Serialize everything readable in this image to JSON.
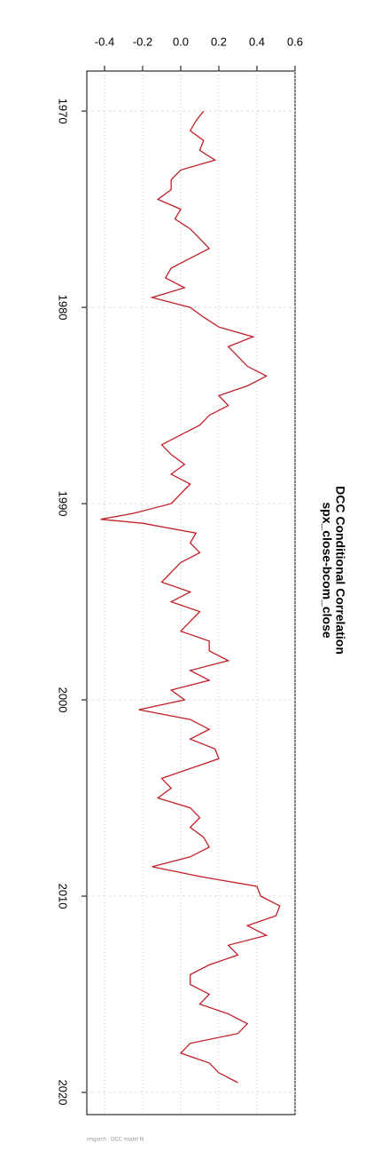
{
  "chart_data": {
    "type": "line",
    "title": "DCC Conditional Correlation",
    "subtitle": "spx_close-bcom_close",
    "caption": "rmgarch : DCC model fit",
    "x": [
      1970,
      1970.5,
      1971,
      1971.5,
      1972,
      1972.5,
      1973,
      1973.5,
      1974,
      1974.5,
      1975,
      1975.5,
      1976,
      1976.5,
      1977,
      1977.5,
      1978,
      1978.5,
      1979,
      1979.5,
      1980,
      1980.5,
      1981,
      1981.5,
      1982,
      1982.5,
      1983,
      1983.5,
      1984,
      1984.5,
      1985,
      1985.5,
      1986,
      1986.5,
      1987,
      1987.5,
      1988,
      1988.5,
      1989,
      1989.5,
      1990,
      1990.5,
      1990.8,
      1991,
      1991.5,
      1992,
      1992.5,
      1993,
      1993.5,
      1994,
      1994.5,
      1995,
      1995.5,
      1996,
      1996.5,
      1997,
      1997.5,
      1998,
      1998.5,
      1999,
      1999.5,
      2000,
      2000.5,
      2001,
      2001.5,
      2002,
      2002.5,
      2003,
      2003.5,
      2004,
      2004.5,
      2005,
      2005.5,
      2006,
      2006.5,
      2007,
      2007.5,
      2008,
      2008.5,
      2009,
      2009.5,
      2010,
      2010.5,
      2011,
      2011.5,
      2012,
      2012.5,
      2013,
      2013.5,
      2014,
      2014.5,
      2015,
      2015.5,
      2016,
      2016.5,
      2017,
      2017.5,
      2018,
      2018.5,
      2019,
      2019.5
    ],
    "series": [
      {
        "name": "spx_close-bcom_close",
        "color": "#c0202a",
        "values": [
          0.12,
          0.08,
          0.05,
          0.12,
          0.1,
          0.18,
          0.0,
          -0.05,
          -0.05,
          -0.12,
          0.0,
          -0.03,
          0.05,
          0.1,
          0.15,
          0.05,
          -0.05,
          -0.08,
          0.02,
          -0.15,
          0.05,
          0.12,
          0.2,
          0.38,
          0.25,
          0.3,
          0.35,
          0.45,
          0.35,
          0.2,
          0.25,
          0.15,
          0.1,
          0.0,
          -0.1,
          -0.05,
          0.02,
          -0.05,
          0.05,
          0.0,
          -0.05,
          -0.25,
          -0.42,
          -0.2,
          0.08,
          0.05,
          0.1,
          0.0,
          -0.05,
          -0.1,
          0.05,
          -0.05,
          0.1,
          0.05,
          0.0,
          0.15,
          0.15,
          0.25,
          0.05,
          0.15,
          -0.05,
          0.02,
          -0.22,
          0.05,
          0.15,
          0.05,
          0.18,
          0.2,
          0.05,
          -0.1,
          -0.05,
          -0.12,
          0.05,
          0.1,
          0.05,
          0.12,
          0.15,
          0.05,
          -0.15,
          0.1,
          0.4,
          0.42,
          0.52,
          0.5,
          0.35,
          0.45,
          0.25,
          0.3,
          0.15,
          0.05,
          0.05,
          0.15,
          0.1,
          0.25,
          0.35,
          0.3,
          0.05,
          0.0,
          0.15,
          0.2,
          0.3
        ]
      }
    ],
    "xlim": [
      1967.96,
      2021.13
    ],
    "xticks": [
      1970,
      1980,
      1990,
      2000,
      2010,
      2020
    ],
    "ylim": [
      -0.493,
      0.6
    ],
    "yticks": [
      -0.4,
      -0.2,
      {
        "value": 0,
        "label": "0.0"
      },
      0.2,
      0.4,
      0.6
    ],
    "grid": true
  }
}
